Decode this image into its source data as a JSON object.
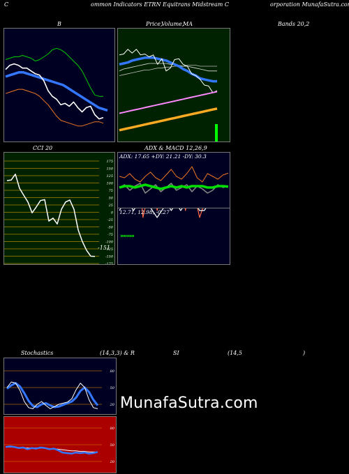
{
  "header": {
    "c": "C",
    "title_mid": "ommon  Indicators ETRN  Equitrans Midstream C",
    "title_right": "orporation  MunafaSutra.com"
  },
  "panel_titles": {
    "bollinger": "B",
    "price_mid": "Price,",
    "price_mid2": "Volume,",
    "price_ma": "MA",
    "bands": "Bands 20,2",
    "cci": "CCI 20",
    "adx": "ADX  & MACD 12,26,9",
    "adx_values": "ADX: 17.65  +DY: 21.21  -DY: 30.3",
    "macd_values": "12.71,  12.98,  -0.27",
    "cci_value": "-151",
    "stoch_left": "Stochastics",
    "stoch_params": "(14,3,3) & R",
    "rsi_label": "SI",
    "rsi_params": "(14,5",
    "rsi_close": ")"
  },
  "watermark": "MunafaSutra.com",
  "colors": {
    "bollinger_bg": "#000022",
    "price_bg": "#002200",
    "cci_bg": "#002200",
    "adx_bg": "#000022",
    "stoch_bg": "#000022",
    "rsi_bg": "#aa0000",
    "green": "#00cc00",
    "blue": "#3377ff",
    "orange": "#ee7722"
  },
  "cci_ticks": [
    "175",
    "150",
    "125",
    "100",
    "75",
    "50",
    "25",
    "0",
    "-25",
    "-50",
    "-75",
    "-100",
    "-125",
    "-150",
    "-175"
  ],
  "stoch_ticks": [
    "80",
    "50",
    "20"
  ],
  "rsi_ticks": [
    "80",
    "50",
    "20"
  ],
  "chart_data": [
    {
      "type": "line",
      "name": "Bollinger Bands 20,2",
      "series": [
        {
          "name": "upper",
          "values": [
            78,
            79,
            80,
            80,
            81,
            80,
            79,
            77,
            78,
            80,
            82,
            85,
            86,
            85,
            83,
            80,
            77,
            74,
            70,
            64,
            58,
            53,
            52,
            52
          ]
        },
        {
          "name": "middle",
          "values": [
            66,
            67,
            68,
            69,
            69,
            68,
            67,
            66,
            65,
            64,
            63,
            62,
            61,
            60,
            58,
            56,
            54,
            52,
            50,
            48,
            46,
            44,
            43,
            42
          ]
        },
        {
          "name": "lower",
          "values": [
            54,
            55,
            56,
            57,
            57,
            56,
            55,
            54,
            52,
            49,
            46,
            42,
            38,
            35,
            34,
            33,
            32,
            31,
            31,
            32,
            33,
            34,
            34,
            33
          ]
        },
        {
          "name": "price",
          "values": [
            71,
            74,
            75,
            74,
            72,
            72,
            70,
            68,
            67,
            63,
            56,
            52,
            50,
            46,
            47,
            45,
            48,
            44,
            41,
            44,
            45,
            39,
            36,
            37
          ]
        }
      ],
      "ylim": [
        20,
        100
      ]
    },
    {
      "type": "line",
      "name": "Price, Volume, MA",
      "series": [
        {
          "name": "price",
          "values": [
            72,
            73,
            78,
            74,
            78,
            72,
            73,
            70,
            72,
            62,
            68,
            55,
            58,
            67,
            68,
            62,
            60,
            52,
            50,
            46,
            40,
            39,
            32,
            34
          ]
        },
        {
          "name": "ma_short",
          "values": [
            62,
            63,
            64,
            66,
            67,
            68,
            69,
            69,
            69,
            68,
            67,
            66,
            64,
            62,
            60,
            57,
            55,
            52,
            50,
            47,
            46,
            45,
            44,
            44
          ]
        },
        {
          "name": "ma_mid",
          "values": [
            55,
            57,
            58,
            59,
            60,
            61,
            62,
            63,
            63,
            63,
            63,
            63,
            62,
            62,
            61,
            60,
            60,
            59,
            58,
            57,
            56,
            55,
            55,
            55
          ]
        },
        {
          "name": "ma_long",
          "values": [
            50,
            51,
            52,
            53,
            54,
            55,
            56,
            56,
            57,
            58,
            58,
            59,
            59,
            60,
            60,
            60,
            61,
            61,
            61,
            60,
            60,
            60,
            60,
            60
          ]
        },
        {
          "name": "ma_pink",
          "values": [
            10,
            11,
            12,
            13,
            14,
            15,
            16,
            17,
            18,
            19,
            20,
            21,
            22,
            23,
            24,
            25,
            26,
            27,
            28,
            29,
            30,
            31,
            32,
            33
          ]
        },
        {
          "name": "ma_orange",
          "values": [
            -8,
            -7,
            -6,
            -5,
            -4,
            -3,
            -2,
            -1,
            0,
            1,
            2,
            3,
            4,
            5,
            6,
            7,
            8,
            9,
            10,
            11,
            12,
            13,
            14,
            15
          ]
        }
      ],
      "ylim": [
        -20,
        100
      ]
    },
    {
      "type": "line",
      "name": "CCI 20",
      "series": [
        {
          "name": "cci",
          "values": [
            108,
            110,
            130,
            82,
            58,
            35,
            -2,
            18,
            40,
            43,
            -30,
            -20,
            -40,
            10,
            35,
            42,
            10,
            -60,
            -100,
            -130,
            -150,
            -151
          ]
        }
      ],
      "ylim": [
        -175,
        175
      ]
    },
    {
      "type": "line",
      "name": "ADX & MACD 12,26,9",
      "series": [
        {
          "name": "adx",
          "values": [
            17,
            18,
            18,
            17,
            18,
            19,
            18,
            17,
            16,
            17,
            18,
            17,
            18,
            17,
            18,
            18,
            18,
            17,
            17,
            18,
            18,
            17.65
          ]
        },
        {
          "name": "plus_di",
          "values": [
            20,
            22,
            18,
            21,
            23,
            16,
            19,
            22,
            17,
            20,
            23,
            18,
            20,
            22,
            17,
            21,
            19,
            16,
            18,
            22,
            20,
            21.21
          ]
        },
        {
          "name": "minus_di",
          "values": [
            28,
            27,
            30,
            26,
            24,
            28,
            31,
            27,
            25,
            29,
            33,
            28,
            26,
            30,
            35,
            27,
            24,
            30,
            28,
            26,
            29,
            30.3
          ]
        },
        {
          "name": "macd",
          "values": [
            13.4,
            13.5,
            13.5,
            13.4,
            13.4,
            13.3,
            13.3,
            13.2,
            13.2,
            13.1,
            13.1,
            13.0,
            13.0,
            12.9,
            12.9,
            12.9,
            12.8,
            12.8,
            12.8,
            12.7,
            12.7,
            12.71
          ]
        },
        {
          "name": "signal",
          "values": [
            13.2,
            13.2,
            13.2,
            13.2,
            13.2,
            13.2,
            13.2,
            13.1,
            13.1,
            13.1,
            13.1,
            13.1,
            13.0,
            13.0,
            13.0,
            13.0,
            13.0,
            13.0,
            13.0,
            13.0,
            13.0,
            12.98
          ]
        }
      ]
    },
    {
      "type": "line",
      "name": "Stochastics (14,3,3)",
      "series": [
        {
          "name": "k",
          "values": [
            50,
            60,
            58,
            45,
            25,
            14,
            12,
            20,
            25,
            18,
            12,
            16,
            20,
            22,
            24,
            30,
            46,
            58,
            50,
            28,
            14,
            12
          ]
        },
        {
          "name": "d",
          "values": [
            48,
            54,
            58,
            52,
            40,
            26,
            17,
            15,
            20,
            22,
            18,
            15,
            16,
            19,
            22,
            25,
            32,
            44,
            50,
            42,
            28,
            18
          ]
        }
      ],
      "ylim": [
        0,
        100
      ]
    },
    {
      "type": "line",
      "name": "RSI (14,5)",
      "series": [
        {
          "name": "rsi",
          "values": [
            46,
            47,
            46,
            44,
            45,
            42,
            44,
            43,
            45,
            44,
            42,
            43,
            40,
            36,
            35,
            34,
            36,
            35,
            36,
            34,
            35,
            37
          ]
        },
        {
          "name": "avg",
          "values": [
            46,
            46,
            46,
            45,
            45,
            44,
            44,
            44,
            44,
            44,
            43,
            43,
            42,
            41,
            40,
            39,
            39,
            38,
            38,
            37,
            37,
            37
          ]
        }
      ],
      "ylim": [
        0,
        100
      ]
    }
  ]
}
